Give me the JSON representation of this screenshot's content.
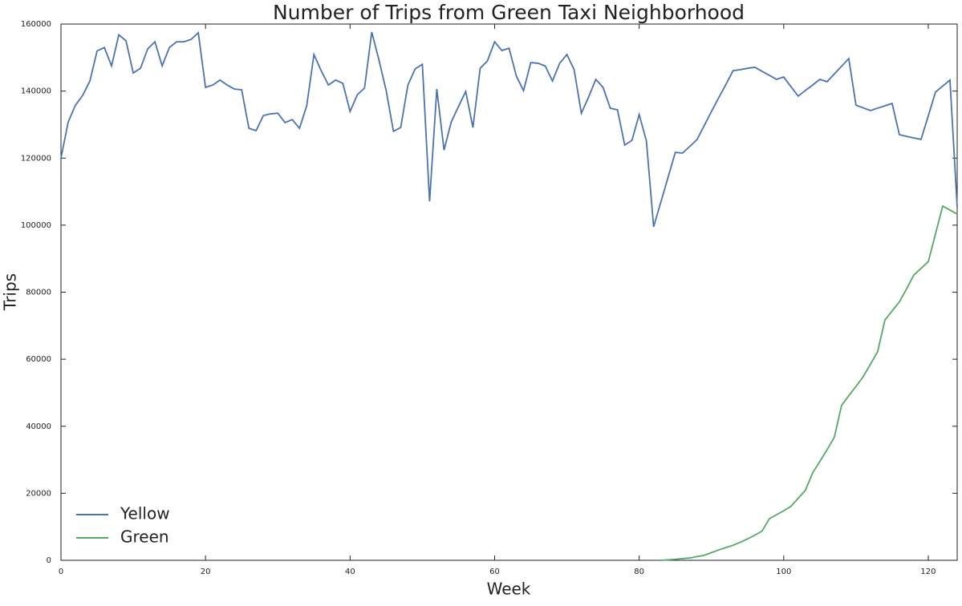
{
  "chart_data": {
    "type": "line",
    "title": "Number of Trips from Green Taxi Neighborhood",
    "x_label": "Week",
    "y_label": "Trips",
    "x": [
      0,
      1,
      2,
      3,
      4,
      5,
      6,
      7,
      8,
      9,
      10,
      11,
      12,
      13,
      14,
      15,
      16,
      17,
      18,
      19,
      20,
      21,
      22,
      23,
      24,
      25,
      26,
      27,
      28,
      29,
      30,
      31,
      32,
      33,
      34,
      35,
      36,
      37,
      38,
      39,
      40,
      41,
      42,
      43,
      44,
      45,
      46,
      47,
      48,
      49,
      50,
      51,
      52,
      53,
      54,
      55,
      56,
      57,
      58,
      59,
      60,
      61,
      62,
      63,
      64,
      65,
      66,
      67,
      68,
      69,
      70,
      71,
      72,
      73,
      74,
      75,
      76,
      77,
      78,
      79,
      80,
      81,
      82,
      83,
      84,
      85,
      86,
      87,
      88,
      89,
      90,
      91,
      92,
      93,
      94,
      95,
      96,
      97,
      98,
      99,
      100,
      101,
      102,
      103,
      104,
      105,
      106,
      107,
      108,
      109,
      110,
      111,
      112,
      113,
      114,
      115,
      116,
      117,
      118,
      119,
      120,
      121,
      122,
      123,
      124
    ],
    "series": [
      {
        "name": "Yellow",
        "color": "#4c72b0",
        "values": [
          120000,
          130800,
          135800,
          138700,
          143000,
          152000,
          153000,
          147500,
          156800,
          155000,
          145400,
          146800,
          152600,
          154700,
          147500,
          153000,
          154700,
          154700,
          155400,
          157400,
          141100,
          141800,
          143300,
          141800,
          140600,
          140400,
          128900,
          128200,
          132700,
          133200,
          133400,
          130600,
          131500,
          128900,
          135600,
          150900,
          146100,
          141800,
          143300,
          142300,
          133900,
          138900,
          140900,
          157600,
          149200,
          140100,
          128000,
          129100,
          141800,
          146600,
          148000,
          107100,
          140600,
          122400,
          130800,
          135400,
          139900,
          129100,
          146800,
          149000,
          154700,
          152100,
          152800,
          144500,
          140100,
          148500,
          148300,
          147500,
          143000,
          148300,
          150900,
          146400,
          133400,
          138200,
          143500,
          141100,
          134900,
          134400,
          123900,
          125300,
          133000,
          125100,
          99500,
          106900,
          114300,
          121700,
          121500,
          123500,
          125500,
          129700,
          133900,
          138000,
          142000,
          146100,
          146400,
          146800,
          147100,
          145900,
          144700,
          143500,
          144200,
          141300,
          138500,
          140200,
          141800,
          143500,
          142800,
          145100,
          147400,
          149700,
          135800,
          135000,
          134200,
          134900,
          135600,
          136300,
          127000,
          126500,
          126000,
          125600,
          132600,
          139700,
          141500,
          143300,
          105400
        ]
      },
      {
        "name": "Green",
        "color": "#55a868",
        "values": [
          null,
          null,
          null,
          null,
          null,
          null,
          null,
          null,
          null,
          null,
          null,
          null,
          null,
          null,
          null,
          null,
          null,
          null,
          null,
          null,
          null,
          null,
          null,
          null,
          null,
          null,
          null,
          null,
          null,
          null,
          null,
          null,
          null,
          null,
          null,
          null,
          null,
          null,
          null,
          null,
          null,
          null,
          null,
          null,
          null,
          null,
          null,
          null,
          null,
          null,
          null,
          null,
          null,
          null,
          null,
          null,
          null,
          null,
          null,
          null,
          null,
          null,
          null,
          null,
          null,
          null,
          null,
          null,
          null,
          null,
          null,
          null,
          null,
          null,
          null,
          null,
          null,
          null,
          null,
          null,
          null,
          null,
          null,
          0,
          150,
          300,
          500,
          700,
          1100,
          1500,
          2300,
          3100,
          3800,
          4500,
          5400,
          6400,
          7500,
          8700,
          12400,
          13600,
          14800,
          16100,
          18500,
          20900,
          26100,
          29500,
          33000,
          36700,
          46200,
          49100,
          51900,
          54800,
          58500,
          62300,
          71700,
          74400,
          77100,
          81000,
          85100,
          87100,
          89100,
          97400,
          105700,
          104500,
          103300
        ]
      }
    ],
    "xlim": [
      0,
      124
    ],
    "xticks": [
      0,
      20,
      40,
      60,
      80,
      100,
      120
    ],
    "ylim": [
      0,
      160000
    ],
    "yticks": [
      0,
      20000,
      40000,
      60000,
      80000,
      100000,
      120000,
      140000,
      160000
    ],
    "grid": false,
    "legend": "lower left"
  }
}
